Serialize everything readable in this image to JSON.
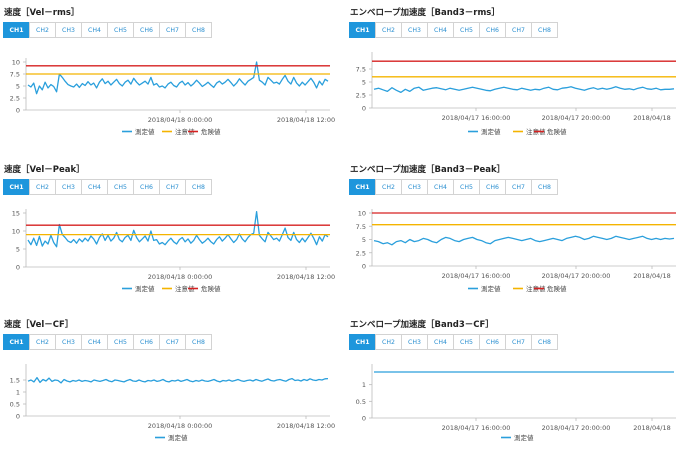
{
  "colors": {
    "measured": "#2a9fdc",
    "caution": "#f4b400",
    "danger": "#d62020",
    "tab_active": "#1e96dc"
  },
  "panels": [
    {
      "title": "速度［Vel－rms］",
      "tabs": [
        "CH1",
        "CH2",
        "CH3",
        "CH4",
        "CH5",
        "CH6",
        "CH7",
        "CH8"
      ],
      "active_tab": "CH1",
      "legend": [
        "測定値",
        "注意値",
        "危険値"
      ]
    },
    {
      "title": "エンベロープ加速度［Band3－rms］",
      "tabs": [
        "CH1",
        "CH2",
        "CH3",
        "CH4",
        "CH5",
        "CH6",
        "CH7",
        "CH8"
      ],
      "active_tab": "CH1",
      "legend": [
        "測定値",
        "注意値",
        "危険値"
      ]
    },
    {
      "title": "速度［Vel－Peak］",
      "tabs": [
        "CH1",
        "CH2",
        "CH3",
        "CH4",
        "CH5",
        "CH6",
        "CH7",
        "CH8"
      ],
      "active_tab": "CH1",
      "legend": [
        "測定値",
        "注意値",
        "危険値"
      ]
    },
    {
      "title": "エンベロープ加速度［Band3－Peak］",
      "tabs": [
        "CH1",
        "CH2",
        "CH3",
        "CH4",
        "CH5",
        "CH6",
        "CH7",
        "CH8"
      ],
      "active_tab": "CH1",
      "legend": [
        "測定値",
        "注意値",
        "危険値"
      ]
    },
    {
      "title": "速度［Vel－CF］",
      "tabs": [
        "CH1",
        "CH2",
        "CH3",
        "CH4",
        "CH5",
        "CH6",
        "CH7",
        "CH8"
      ],
      "active_tab": "CH1",
      "legend": [
        "測定値"
      ]
    },
    {
      "title": "エンベロープ加速度［Band3－CF］",
      "tabs": [
        "CH1",
        "CH2",
        "CH3",
        "CH4",
        "CH5",
        "CH6",
        "CH7",
        "CH8"
      ],
      "active_tab": "CH1",
      "legend": [
        "測定値"
      ]
    }
  ],
  "chart_data": [
    {
      "type": "line",
      "ylim": [
        0,
        10
      ],
      "yticks": [
        "0",
        "2.5",
        "5",
        "7.5",
        "10"
      ],
      "xticks": [
        "2018/04/18 0:00:00",
        "2018/04/18 12:00"
      ],
      "series": [
        {
          "name": "測定値",
          "values": [
            5.2,
            4.8,
            5.6,
            3.4,
            5.0,
            4.2,
            5.8,
            4.6,
            5.3,
            4.9,
            3.8,
            7.5,
            6.8,
            6.0,
            5.3,
            5.0,
            4.8,
            5.4,
            4.7,
            5.5,
            5.1,
            5.9,
            5.2,
            5.6,
            4.6,
            5.8,
            6.5,
            5.5,
            6.0,
            5.2,
            5.8,
            6.4,
            5.5,
            5.0,
            5.8,
            6.2,
            5.4,
            6.6,
            5.8,
            5.2,
            5.6,
            6.0,
            5.4,
            6.8,
            5.2,
            5.5,
            4.8,
            5.0,
            4.6,
            5.4,
            5.8,
            5.1,
            4.8,
            5.6,
            6.0,
            5.2,
            5.7,
            5.0,
            5.5,
            6.2,
            5.6,
            4.9,
            5.3,
            5.8,
            5.2,
            4.7,
            5.6,
            6.0,
            5.4,
            5.8,
            6.4,
            5.7,
            5.0,
            5.6,
            6.5,
            5.8,
            5.2,
            6.0,
            6.4,
            6.8,
            10.0,
            6.2,
            5.8,
            5.2,
            6.8,
            6.2,
            5.6,
            5.8,
            5.4,
            6.4,
            7.2,
            6.0,
            5.4,
            6.8,
            5.6,
            5.0,
            5.8,
            5.2,
            5.9,
            6.6,
            5.8,
            4.6,
            6.0,
            5.2,
            6.4,
            6.0
          ]
        },
        {
          "name": "注意値",
          "values": [
            7.5
          ]
        },
        {
          "name": "危険値",
          "values": [
            9.2
          ]
        }
      ]
    },
    {
      "type": "line",
      "ylim": [
        0,
        10
      ],
      "yticks": [
        "0",
        "2.5",
        "5",
        "7.5"
      ],
      "xticks": [
        "2018/04/17 16:00:00",
        "2018/04/17 20:00:00",
        "2018/04/18"
      ],
      "series": [
        {
          "name": "測定値",
          "values": [
            3.6,
            3.8,
            3.5,
            3.2,
            3.9,
            3.4,
            3.0,
            3.6,
            3.2,
            3.8,
            4.0,
            3.4,
            3.6,
            3.8,
            3.9,
            3.7,
            3.5,
            3.8,
            3.6,
            3.4,
            3.6,
            3.8,
            4.0,
            3.8,
            3.6,
            3.4,
            3.3,
            3.6,
            3.8,
            4.0,
            3.8,
            3.6,
            3.5,
            3.8,
            3.6,
            3.4,
            3.6,
            3.5,
            3.8,
            4.0,
            3.6,
            3.5,
            3.8,
            3.9,
            4.1,
            3.8,
            3.6,
            3.4,
            3.7,
            3.9,
            3.6,
            3.8,
            3.6,
            3.8,
            4.1,
            3.8,
            3.6,
            3.7,
            3.5,
            3.8,
            4.0,
            3.7,
            3.6,
            3.8,
            3.5,
            3.6,
            3.6,
            3.7
          ]
        },
        {
          "name": "注意値",
          "values": [
            6.0
          ]
        },
        {
          "name": "危険値",
          "values": [
            9.0
          ]
        }
      ]
    },
    {
      "type": "line",
      "ylim": [
        0,
        15
      ],
      "yticks": [
        "0",
        "5",
        "10",
        "15"
      ],
      "xticks": [
        "2018/04/18 0:00:00",
        "2018/04/18 12:00"
      ],
      "series": [
        {
          "name": "測定値",
          "values": [
            7.5,
            6.2,
            8.0,
            6.0,
            8.5,
            5.8,
            7.2,
            6.4,
            8.8,
            6.8,
            5.6,
            11.8,
            9.0,
            8.2,
            7.2,
            6.8,
            7.6,
            6.6,
            7.8,
            7.0,
            8.0,
            7.2,
            8.6,
            7.8,
            6.4,
            8.2,
            9.2,
            7.4,
            8.8,
            7.2,
            8.0,
            9.6,
            7.6,
            7.0,
            8.2,
            8.8,
            7.4,
            10.2,
            8.2,
            7.0,
            7.8,
            8.6,
            7.2,
            10.0,
            7.4,
            7.6,
            6.4,
            6.8,
            6.2,
            7.2,
            8.0,
            7.0,
            6.4,
            7.6,
            8.2,
            7.0,
            7.8,
            6.6,
            7.4,
            8.8,
            7.6,
            6.6,
            7.2,
            8.0,
            7.0,
            6.4,
            7.6,
            8.4,
            7.2,
            8.0,
            9.0,
            7.8,
            6.8,
            7.6,
            9.2,
            7.8,
            7.0,
            8.2,
            9.0,
            9.4,
            15.4,
            8.8,
            7.8,
            7.0,
            9.6,
            8.6,
            7.6,
            8.0,
            7.2,
            9.0,
            10.8,
            8.2,
            7.4,
            9.6,
            7.6,
            6.8,
            8.0,
            7.0,
            8.2,
            9.4,
            8.0,
            6.2,
            8.4,
            7.2,
            9.0,
            8.4
          ]
        },
        {
          "name": "注意値",
          "values": [
            9.0
          ]
        },
        {
          "name": "危険値",
          "values": [
            11.6
          ]
        }
      ]
    },
    {
      "type": "line",
      "ylim": [
        0,
        10
      ],
      "yticks": [
        "0",
        "2.5",
        "5",
        "7.5",
        "10"
      ],
      "xticks": [
        "2018/04/17 16:00:00",
        "2018/04/17 20:00:00",
        "2018/04/18"
      ],
      "series": [
        {
          "name": "測定値",
          "values": [
            4.8,
            4.6,
            4.2,
            4.4,
            4.0,
            4.6,
            4.8,
            4.4,
            5.0,
            4.6,
            4.8,
            5.2,
            5.0,
            4.6,
            4.4,
            5.0,
            5.4,
            5.2,
            4.8,
            4.6,
            5.0,
            5.2,
            5.4,
            5.0,
            4.8,
            4.4,
            4.2,
            4.8,
            5.0,
            5.2,
            5.4,
            5.2,
            5.0,
            4.8,
            5.0,
            5.2,
            4.8,
            4.6,
            4.8,
            5.0,
            5.2,
            5.0,
            4.8,
            5.2,
            5.4,
            5.6,
            5.4,
            5.0,
            5.2,
            5.6,
            5.4,
            5.2,
            5.0,
            5.2,
            5.6,
            5.4,
            5.2,
            5.0,
            5.2,
            5.4,
            5.6,
            5.2,
            5.0,
            5.2,
            5.0,
            5.2,
            5.1,
            5.2
          ]
        },
        {
          "name": "注意値",
          "values": [
            7.8
          ]
        },
        {
          "name": "危険値",
          "values": [
            10.0
          ]
        }
      ]
    },
    {
      "type": "line",
      "ylim": [
        0,
        2
      ],
      "yticks": [
        "0",
        "0.5",
        "1",
        "1.5"
      ],
      "xticks": [
        "2018/04/18 0:00:00",
        "2018/04/18 12:00"
      ],
      "series": [
        {
          "name": "測定値",
          "values": [
            1.45,
            1.5,
            1.42,
            1.6,
            1.4,
            1.52,
            1.46,
            1.58,
            1.44,
            1.5,
            1.48,
            1.38,
            1.52,
            1.46,
            1.42,
            1.48,
            1.45,
            1.5,
            1.44,
            1.48,
            1.46,
            1.42,
            1.5,
            1.47,
            1.44,
            1.48,
            1.52,
            1.46,
            1.43,
            1.5,
            1.48,
            1.45,
            1.42,
            1.48,
            1.52,
            1.46,
            1.44,
            1.5,
            1.45,
            1.42,
            1.48,
            1.46,
            1.5,
            1.44,
            1.47,
            1.52,
            1.45,
            1.42,
            1.48,
            1.46,
            1.5,
            1.44,
            1.48,
            1.52,
            1.46,
            1.43,
            1.48,
            1.45,
            1.5,
            1.46,
            1.44,
            1.48,
            1.52,
            1.46,
            1.42,
            1.48,
            1.46,
            1.5,
            1.45,
            1.48,
            1.52,
            1.47,
            1.44,
            1.48,
            1.5,
            1.46,
            1.52,
            1.48,
            1.45,
            1.5,
            1.54,
            1.48,
            1.46,
            1.5,
            1.52,
            1.48,
            1.45,
            1.52,
            1.56,
            1.48,
            1.5,
            1.46,
            1.52,
            1.48,
            1.55,
            1.5,
            1.48,
            1.52,
            1.5,
            1.55,
            1.56
          ]
        }
      ]
    },
    {
      "type": "line",
      "ylim": [
        0,
        1.5
      ],
      "yticks": [
        "0",
        "0.5",
        "1"
      ],
      "xticks": [
        "2018/04/17 16:00:00",
        "2018/04/17 20:00:00",
        "2018/04/18"
      ],
      "series": [
        {
          "name": "測定値",
          "values": [
            1.38,
            1.38
          ]
        }
      ]
    }
  ]
}
